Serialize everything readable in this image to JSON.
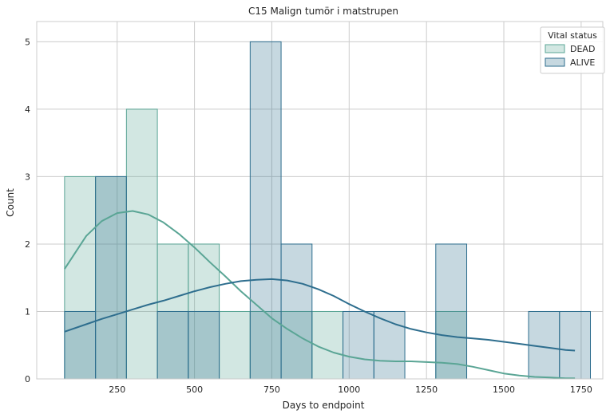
{
  "chart_data": {
    "type": "histogram",
    "title": "C15 Malign tumör i matstrupen",
    "xlabel": "Days to endpoint",
    "ylabel": "Count",
    "xlim": [
      -10,
      1820
    ],
    "ylim": [
      0,
      5.3
    ],
    "x_ticks": [
      250,
      500,
      750,
      1000,
      1250,
      1500,
      1750
    ],
    "y_ticks": [
      0,
      1,
      2,
      3,
      4,
      5
    ],
    "grid": true,
    "legend_title": "Vital status",
    "legend_position": "top-right",
    "series": [
      {
        "name": "DEAD",
        "color": "#5aa595",
        "bins": [
          {
            "x0": 80,
            "x1": 180,
            "count": 3
          },
          {
            "x0": 180,
            "x1": 280,
            "count": 3
          },
          {
            "x0": 280,
            "x1": 380,
            "count": 4
          },
          {
            "x0": 380,
            "x1": 480,
            "count": 2
          },
          {
            "x0": 480,
            "x1": 580,
            "count": 2
          },
          {
            "x0": 580,
            "x1": 680,
            "count": 1
          },
          {
            "x0": 680,
            "x1": 780,
            "count": 1
          },
          {
            "x0": 780,
            "x1": 880,
            "count": 1
          },
          {
            "x0": 880,
            "x1": 980,
            "count": 1
          },
          {
            "x0": 1280,
            "x1": 1380,
            "count": 1
          }
        ],
        "kde_x": [
          80,
          150,
          200,
          250,
          300,
          350,
          400,
          450,
          500,
          550,
          600,
          650,
          700,
          750,
          800,
          850,
          900,
          950,
          1000,
          1050,
          1100,
          1150,
          1200,
          1250,
          1300,
          1350,
          1400,
          1450,
          1500,
          1550,
          1600,
          1650,
          1700,
          1730
        ],
        "kde_y": [
          1.63,
          2.12,
          2.34,
          2.46,
          2.49,
          2.44,
          2.32,
          2.15,
          1.95,
          1.73,
          1.52,
          1.3,
          1.1,
          0.9,
          0.74,
          0.6,
          0.48,
          0.39,
          0.33,
          0.29,
          0.27,
          0.26,
          0.26,
          0.25,
          0.24,
          0.22,
          0.18,
          0.13,
          0.08,
          0.05,
          0.03,
          0.02,
          0.01,
          0.01
        ]
      },
      {
        "name": "ALIVE",
        "color": "#2e6e8e",
        "bins": [
          {
            "x0": 80,
            "x1": 180,
            "count": 1
          },
          {
            "x0": 180,
            "x1": 280,
            "count": 3
          },
          {
            "x0": 380,
            "x1": 480,
            "count": 1
          },
          {
            "x0": 480,
            "x1": 580,
            "count": 1
          },
          {
            "x0": 680,
            "x1": 780,
            "count": 5
          },
          {
            "x0": 780,
            "x1": 880,
            "count": 2
          },
          {
            "x0": 980,
            "x1": 1080,
            "count": 1
          },
          {
            "x0": 1080,
            "x1": 1180,
            "count": 1
          },
          {
            "x0": 1280,
            "x1": 1380,
            "count": 2
          },
          {
            "x0": 1580,
            "x1": 1680,
            "count": 1
          },
          {
            "x0": 1680,
            "x1": 1780,
            "count": 1
          }
        ],
        "kde_x": [
          80,
          150,
          200,
          250,
          300,
          350,
          400,
          450,
          500,
          550,
          600,
          650,
          700,
          750,
          800,
          850,
          900,
          950,
          1000,
          1050,
          1100,
          1150,
          1200,
          1250,
          1300,
          1350,
          1400,
          1450,
          1500,
          1550,
          1600,
          1650,
          1700,
          1730
        ],
        "kde_y": [
          0.7,
          0.81,
          0.89,
          0.96,
          1.03,
          1.1,
          1.16,
          1.23,
          1.3,
          1.36,
          1.41,
          1.45,
          1.47,
          1.48,
          1.46,
          1.41,
          1.33,
          1.23,
          1.11,
          1.0,
          0.9,
          0.81,
          0.74,
          0.69,
          0.65,
          0.62,
          0.6,
          0.58,
          0.55,
          0.52,
          0.49,
          0.46,
          0.43,
          0.42
        ]
      }
    ]
  }
}
